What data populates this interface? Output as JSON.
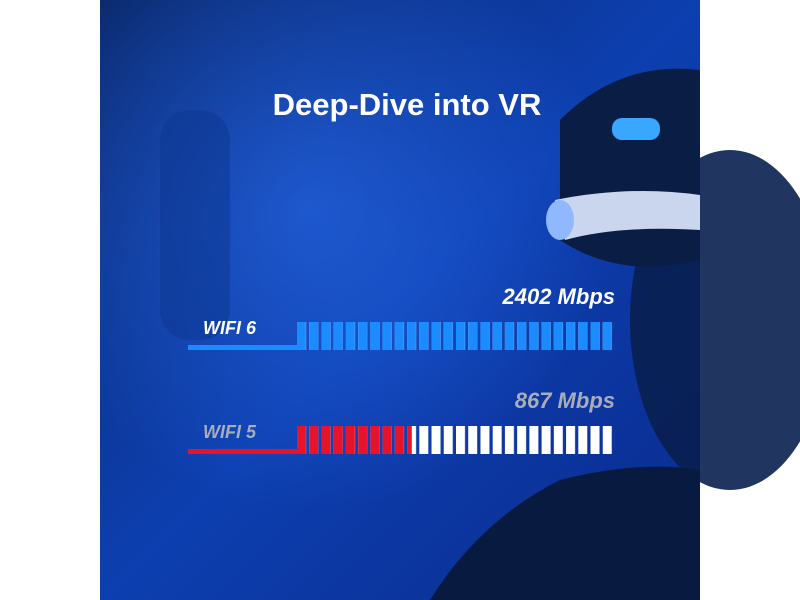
{
  "chart_data": {
    "type": "segmented-bar",
    "title": "Deep-Dive into VR",
    "categories": [
      "WIFI 6",
      "WIFI 5"
    ],
    "values": [
      2402,
      867
    ],
    "value_labels": [
      "2402 Mbps",
      "867 Mbps"
    ],
    "colors": [
      "#1a8cff",
      "#e8122a"
    ]
  }
}
